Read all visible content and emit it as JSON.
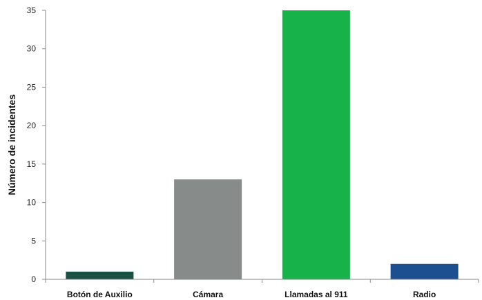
{
  "chart_data": {
    "type": "bar",
    "title": "",
    "xlabel": "",
    "ylabel": "Número de incidentes",
    "categories": [
      "Botón de Auxilio",
      "Cámara",
      "Llamadas al 911",
      "Radio"
    ],
    "values": [
      1,
      13,
      35,
      2
    ],
    "colors": [
      "#1a5040",
      "#878b8a",
      "#18b24b",
      "#1b4f8f"
    ],
    "ylim": [
      0,
      35
    ],
    "yticks": [
      0,
      5,
      10,
      15,
      20,
      25,
      30,
      35
    ],
    "grid": false,
    "legend": "none"
  }
}
